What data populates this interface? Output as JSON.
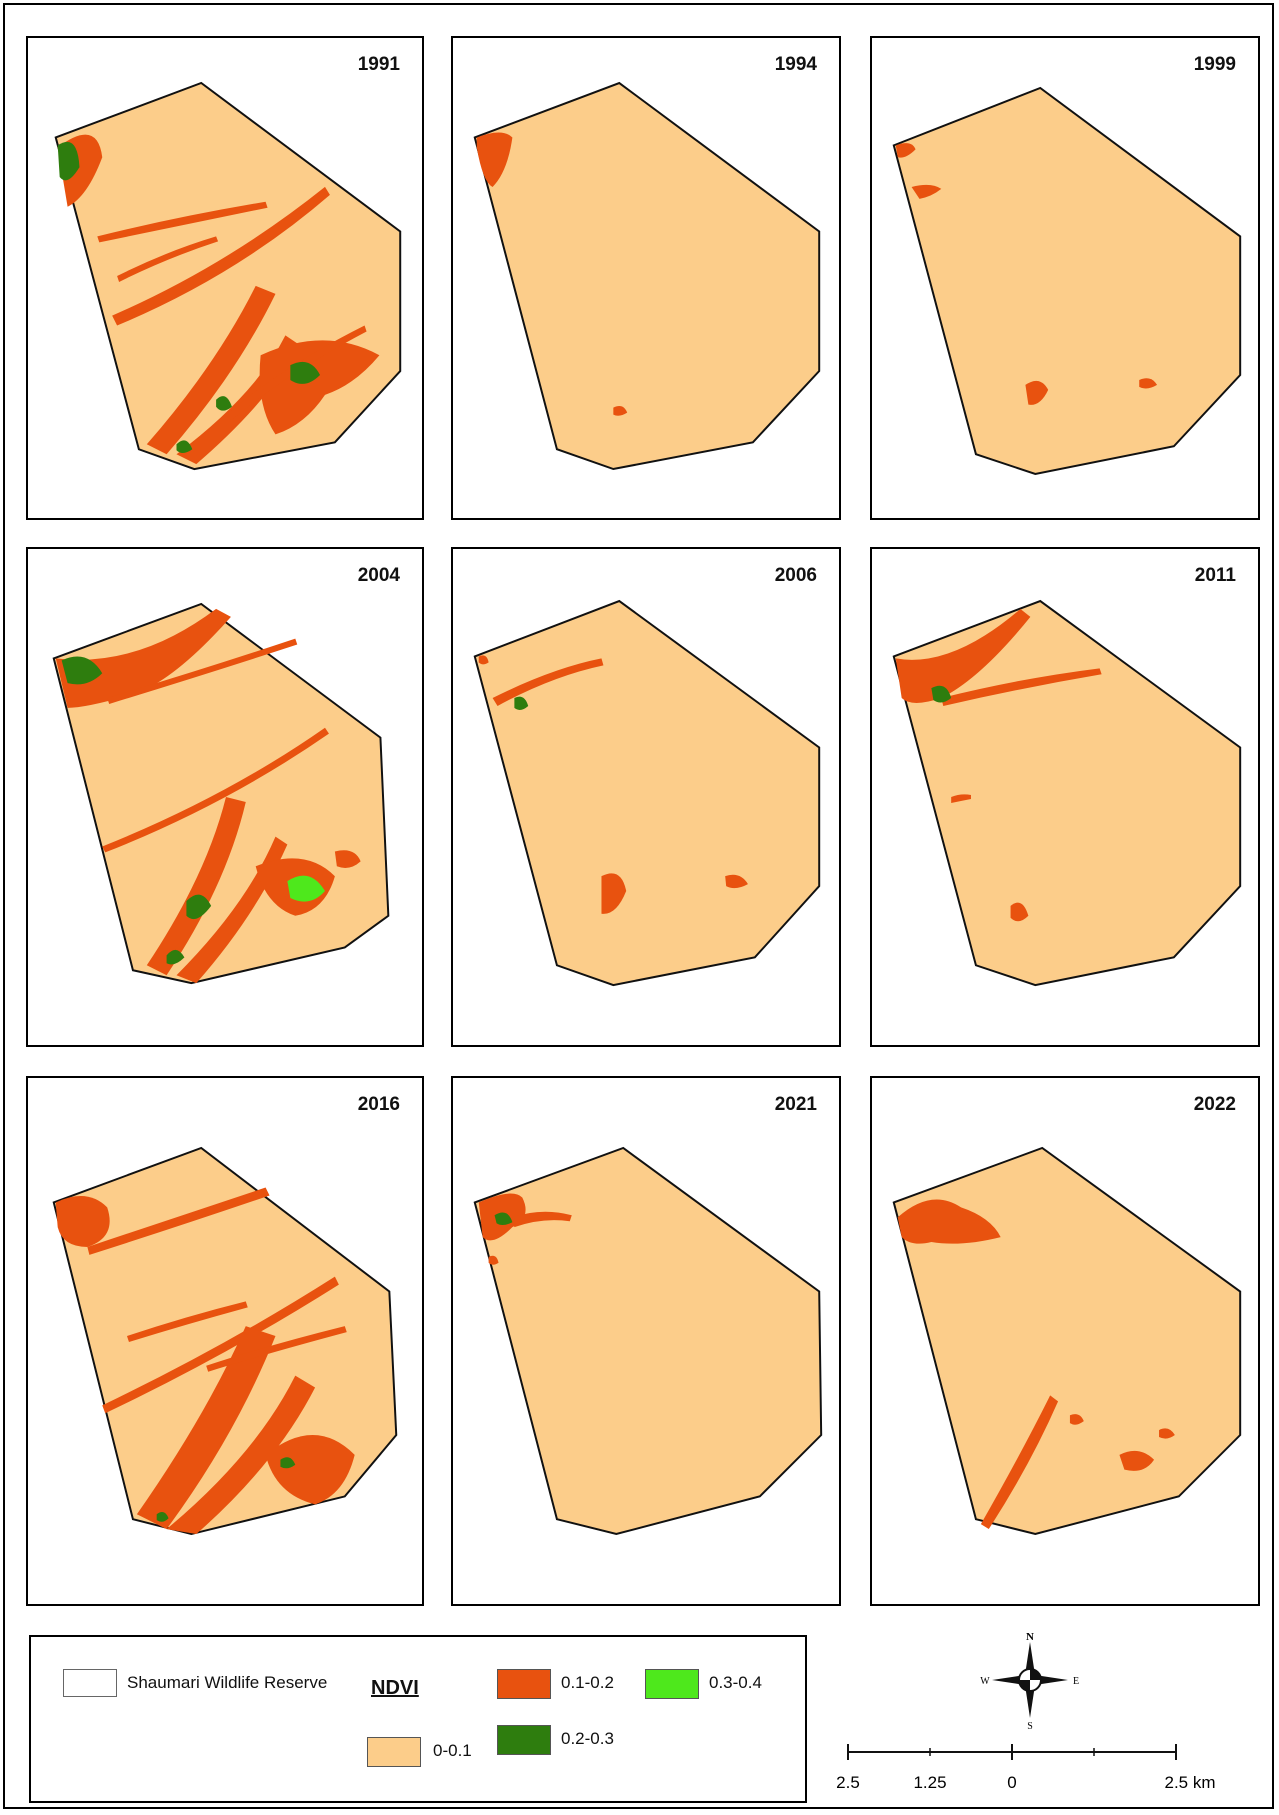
{
  "map_title": "",
  "panels": [
    {
      "year": "1991"
    },
    {
      "year": "1994"
    },
    {
      "year": "1999"
    },
    {
      "year": "2004"
    },
    {
      "year": "2006"
    },
    {
      "year": "2011"
    },
    {
      "year": "2016"
    },
    {
      "year": "2021"
    },
    {
      "year": "2022"
    }
  ],
  "legend": {
    "reserve_label": "Shaumari Wildlife Reserve",
    "ndvi_title": "NDVI",
    "classes": [
      {
        "label": "0-0.1",
        "color": "#FCCD8A"
      },
      {
        "label": "0.1-0.2",
        "color": "#E8520F"
      },
      {
        "label": "0.2-0.3",
        "color": "#2E7D0E"
      },
      {
        "label": "0.3-0.4",
        "color": "#4EE81C"
      }
    ],
    "reserve_fill": "#FFFFFF"
  },
  "compass": {
    "n": "N",
    "s": "S",
    "e": "E",
    "w": "W"
  },
  "scale_bar": {
    "labels": [
      "2.5",
      "1.25",
      "0",
      "2.5 km"
    ]
  }
}
